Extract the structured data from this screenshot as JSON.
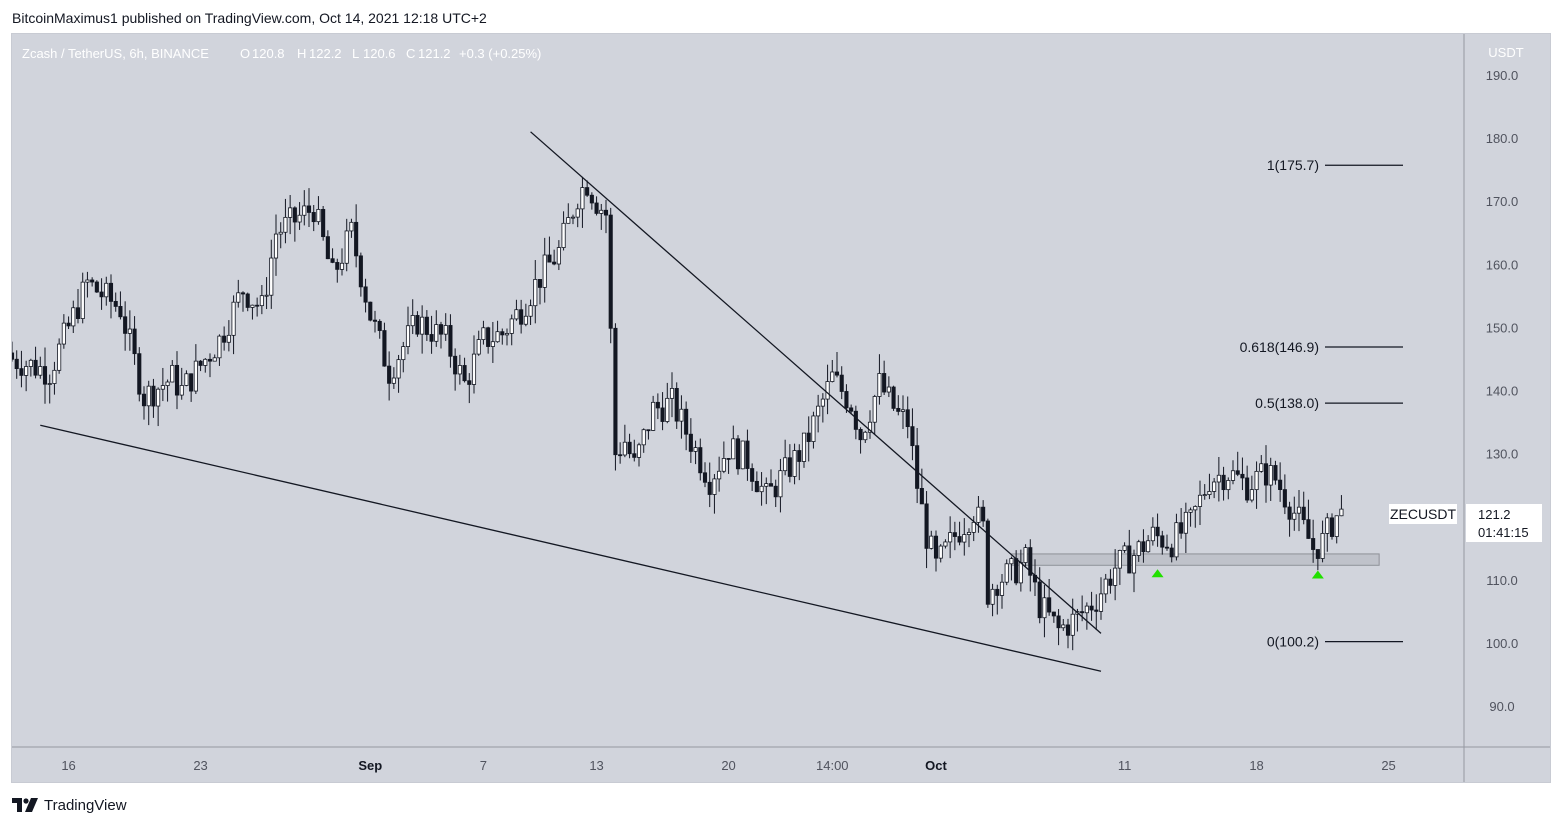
{
  "header": {
    "published_text": "BitcoinMaximus1 published on TradingView.com, Oct 14, 2021 12:18 UTC+2"
  },
  "legend": {
    "symbol": "Zcash / TetherUS, 6h, BINANCE",
    "o_label": "O",
    "o_value": "120.8",
    "h_label": "H",
    "h_value": "122.2",
    "l_label": "L",
    "l_value": "120.6",
    "c_label": "C",
    "c_value": "121.2",
    "change": "+0.3 (+0.25%)"
  },
  "price_axis": {
    "currency": "USDT",
    "ticks": [
      "190.0",
      "180.0",
      "170.0",
      "160.0",
      "150.0",
      "140.0",
      "130.0",
      "110.0",
      "100.0",
      "90.0"
    ]
  },
  "time_axis": {
    "labels": [
      "16",
      "23",
      "Sep",
      "7",
      "13",
      "20",
      "14:00",
      "Oct",
      "11",
      "18",
      "25"
    ]
  },
  "current_price": {
    "symbol": "ZECUSDT",
    "price": "121.2",
    "countdown": "01:41:15"
  },
  "fib_levels": [
    {
      "label": "1(175.7)",
      "price": 175.7
    },
    {
      "label": "0.618(146.9)",
      "price": 146.9
    },
    {
      "label": "0.5(138.0)",
      "price": 138.0
    },
    {
      "label": "0(100.2)",
      "price": 100.2
    }
  ],
  "footer": {
    "brand": "TradingView"
  },
  "colors": {
    "background": "#d1d4dc",
    "candle": "#131722",
    "support_zone": "#bfc2ca",
    "marker": "#22e000",
    "line": "#131722"
  },
  "chart_data": {
    "type": "candlestick",
    "symbol": "ZECUSDT",
    "timeframe": "6h",
    "exchange": "BINANCE",
    "y_unit": "USDT",
    "ylim": [
      83.5,
      196.5
    ],
    "x_range": [
      "2021-08-13",
      "2021-10-29"
    ],
    "grid": false,
    "close_path": [
      [
        "2021-08-13T00:00",
        145
      ],
      [
        "2021-08-15T00:00",
        143
      ],
      [
        "2021-08-17T00:00",
        157
      ],
      [
        "2021-08-18T18:00",
        153
      ],
      [
        "2021-08-20T00:00",
        139
      ],
      [
        "2021-08-21T12:00",
        142
      ],
      [
        "2021-08-22T00:00",
        140
      ],
      [
        "2021-08-24T00:00",
        148
      ],
      [
        "2021-08-25T06:00",
        156
      ],
      [
        "2021-08-26T06:00",
        153
      ],
      [
        "2021-08-27T00:00",
        165
      ],
      [
        "2021-08-29T00:00",
        169
      ],
      [
        "2021-08-30T00:00",
        158
      ],
      [
        "2021-08-31T00:00",
        165
      ],
      [
        "2021-09-01T00:00",
        152
      ],
      [
        "2021-09-02T00:00",
        143
      ],
      [
        "2021-09-03T12:00",
        151
      ],
      [
        "2021-09-05T00:00",
        148
      ],
      [
        "2021-09-06T00:00",
        141
      ],
      [
        "2021-09-07T00:00",
        148
      ],
      [
        "2021-09-08T00:00",
        149
      ],
      [
        "2021-09-09T00:00",
        153
      ],
      [
        "2021-09-10T00:00",
        158
      ],
      [
        "2021-09-11T00:00",
        162
      ],
      [
        "2021-09-12T00:00",
        171
      ],
      [
        "2021-09-12T12:00",
        173
      ],
      [
        "2021-09-13T00:00",
        170
      ],
      [
        "2021-09-13T12:00",
        168
      ],
      [
        "2021-09-14T00:00",
        130
      ],
      [
        "2021-09-14T12:00",
        132
      ],
      [
        "2021-09-15T00:00",
        128
      ],
      [
        "2021-09-16T00:00",
        137
      ],
      [
        "2021-09-17T00:00",
        138
      ],
      [
        "2021-09-18T00:00",
        132
      ],
      [
        "2021-09-19T00:00",
        126
      ],
      [
        "2021-09-20T00:00",
        131
      ],
      [
        "2021-09-21T00:00",
        129
      ],
      [
        "2021-09-22T00:00",
        123
      ],
      [
        "2021-09-23T00:00",
        127
      ],
      [
        "2021-09-24T00:00",
        131
      ],
      [
        "2021-09-25T12:00",
        142
      ],
      [
        "2021-09-26T12:00",
        138
      ],
      [
        "2021-09-27T00:00",
        133
      ],
      [
        "2021-09-28T00:00",
        141
      ],
      [
        "2021-09-29T00:00",
        136
      ],
      [
        "2021-09-29T12:00",
        135
      ],
      [
        "2021-09-30T00:00",
        125
      ],
      [
        "2021-09-30T12:00",
        117
      ],
      [
        "2021-10-01T00:00",
        112
      ],
      [
        "2021-10-02T00:00",
        117
      ],
      [
        "2021-10-03T00:00",
        121
      ],
      [
        "2021-10-03T12:00",
        118
      ],
      [
        "2021-10-03T18:00",
        108
      ],
      [
        "2021-10-04T06:00",
        110
      ],
      [
        "2021-10-05T00:00",
        111
      ],
      [
        "2021-10-05T18:00",
        113
      ],
      [
        "2021-10-06T12:00",
        106
      ],
      [
        "2021-10-07T12:00",
        102
      ],
      [
        "2021-10-08T12:00",
        104
      ],
      [
        "2021-10-09T12:00",
        107
      ],
      [
        "2021-10-10T12:00",
        112
      ],
      [
        "2021-10-11T12:00",
        114
      ],
      [
        "2021-10-12T12:00",
        117
      ],
      [
        "2021-10-13T12:00",
        116
      ],
      [
        "2021-10-14T12:00",
        119
      ],
      [
        "2021-10-15T12:00",
        126
      ],
      [
        "2021-10-16T12:00",
        127
      ],
      [
        "2021-10-17T12:00",
        125
      ],
      [
        "2021-10-18T12:00",
        127
      ],
      [
        "2021-10-19T00:00",
        126
      ],
      [
        "2021-10-19T18:00",
        122
      ],
      [
        "2021-10-20T12:00",
        118
      ],
      [
        "2021-10-21T00:00",
        115
      ],
      [
        "2021-10-21T12:00",
        116
      ],
      [
        "2021-10-22T00:00",
        119
      ],
      [
        "2021-10-22T12:00",
        121.2
      ]
    ],
    "trendlines": [
      {
        "name": "descending-resistance",
        "from": [
          "2021-09-09T12:00",
          181
        ],
        "to": [
          "2021-10-09T18:00",
          101.5
        ]
      },
      {
        "name": "descending-support",
        "from": [
          "2021-08-14T12:00",
          134.5
        ],
        "to": [
          "2021-10-09T18:00",
          95.5
        ]
      }
    ],
    "support_zone": {
      "from": "2021-10-05T00:00",
      "to": "2021-10-24T12:00",
      "low": 112.3,
      "high": 114.1
    },
    "markers": [
      {
        "time": "2021-10-12T18:00",
        "price": 111.2,
        "shape": "triangle-up"
      },
      {
        "time": "2021-10-21T06:00",
        "price": 111.0,
        "shape": "triangle-up"
      }
    ],
    "fibonacci": [
      {
        "ratio": 1,
        "price": 175.7
      },
      {
        "ratio": 0.618,
        "price": 146.9
      },
      {
        "ratio": 0.5,
        "price": 138.0
      },
      {
        "ratio": 0,
        "price": 100.2
      }
    ],
    "last_price": 121.2
  }
}
